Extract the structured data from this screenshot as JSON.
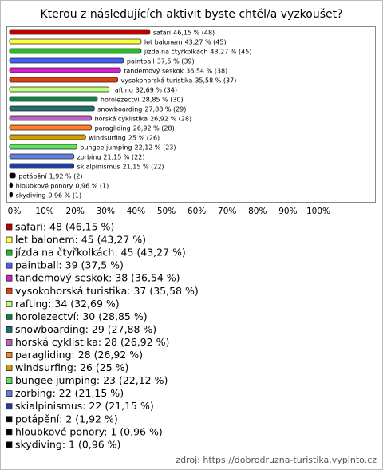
{
  "chart_data": {
    "type": "bar",
    "orientation": "horizontal",
    "title": "Kterou z následujících aktivit byste chtěl/a vyzkoušet?",
    "categories": [
      "safari",
      "let balonem",
      "jízda na čtyřkolkách",
      "paintball",
      "tandemový seskok",
      "vysokohorská turistika",
      "rafting",
      "horolezectví",
      "snowboarding",
      "horská cyklistika",
      "paragliding",
      "windsurfing",
      "bungee jumping",
      "zorbing",
      "skialpinismus",
      "potápění",
      "hloubkové ponory",
      "skydiving"
    ],
    "values": [
      46.15,
      43.27,
      43.27,
      37.5,
      36.54,
      35.58,
      32.69,
      28.85,
      27.88,
      26.92,
      26.92,
      25,
      22.12,
      21.15,
      21.15,
      1.92,
      0.96,
      0.96
    ],
    "value_labels": [
      "46,15 % (48)",
      "43,27 % (45)",
      "43,27 % (45)",
      "37,5 % (39)",
      "36,54 % (38)",
      "35,58 % (37)",
      "32,69 % (34)",
      "28,85 % (30)",
      "27,88 % (29)",
      "26,92 % (28)",
      "26,92 % (28)",
      "25 % (26)",
      "22,12 % (23)",
      "21,15 % (22)",
      "21,15 % (22)",
      "1,92 % (2)",
      "0,96 % (1)",
      "0,96 % (1)"
    ],
    "colors": [
      "#c00000",
      "#ffff40",
      "#20c020",
      "#4060ff",
      "#d020d0",
      "#e04010",
      "#c0ff80",
      "#108040",
      "#207070",
      "#c060c0",
      "#ff8020",
      "#d0a000",
      "#60e060",
      "#6080e0",
      "#2040a0",
      "#000000",
      "#000000",
      "#000000"
    ],
    "legend_labels": [
      "safari: 48 (46,15 %)",
      "let balonem: 45 (43,27 %)",
      "jízda na čtyřkolkách: 45 (43,27 %)",
      "paintball: 39 (37,5 %)",
      "tandemový seskok: 38 (36,54 %)",
      "vysokohorská turistika: 37 (35,58 %)",
      "rafting: 34 (32,69 %)",
      "horolezectví: 30 (28,85 %)",
      "snowboarding: 29 (27,88 %)",
      "horská cyklistika: 28 (26,92 %)",
      "paragliding: 28 (26,92 %)",
      "windsurfing: 26 (25 %)",
      "bungee jumping: 23 (22,12 %)",
      "zorbing: 22 (21,15 %)",
      "skialpinismus: 22 (21,15 %)",
      "potápění: 2 (1,92 %)",
      "hloubkové ponory: 1 (0,96 %)",
      "skydiving: 1 (0,96 %)"
    ],
    "xlim": [
      0,
      100
    ],
    "xticks": [
      {
        "value": 0,
        "label": "0%"
      },
      {
        "value": 10,
        "label": "10%"
      },
      {
        "value": 20,
        "label": "20%"
      },
      {
        "value": 30,
        "label": "30%"
      },
      {
        "value": 40,
        "label": "40%"
      },
      {
        "value": 50,
        "label": "50%"
      },
      {
        "value": 60,
        "label": "60%"
      },
      {
        "value": 70,
        "label": "70%"
      },
      {
        "value": 80,
        "label": "80%"
      },
      {
        "value": 90,
        "label": "90%"
      },
      {
        "value": 100,
        "label": "100%"
      }
    ],
    "source": "zdroj: https://dobrodruzna-turistika.vyplnto.cz"
  }
}
